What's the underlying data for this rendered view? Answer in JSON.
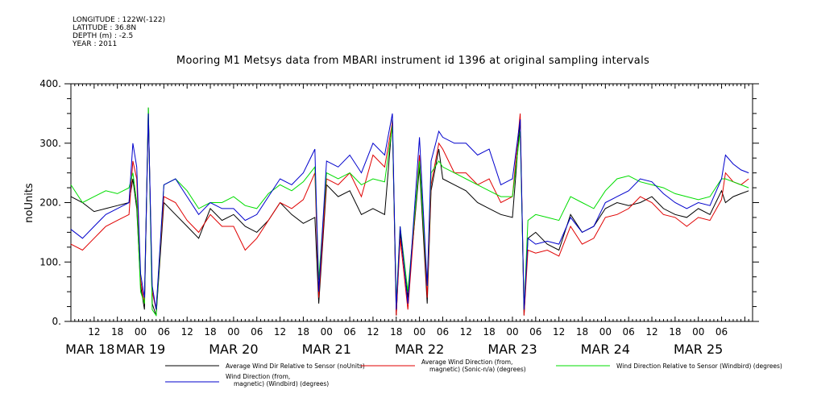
{
  "meta": {
    "longitude": "LONGITUDE : 122W(-122)",
    "latitude": "LATITUDE : 36.8N",
    "depth": "DEPTH (m) : -2.5",
    "year": "YEAR : 2011"
  },
  "chart_data": {
    "type": "line",
    "title": "Mooring M1 Metsys data from MBARI instrument id 1396 at original sampling intervals",
    "ylabel": "noUnits",
    "xlabel": "",
    "ylim": [
      0,
      400
    ],
    "yticks": [
      0,
      100,
      200,
      300,
      400
    ],
    "xlim_hours": [
      6,
      182
    ],
    "hour_ticks": [
      "12",
      "18",
      "00",
      "06",
      "12",
      "18",
      "00",
      "06",
      "12",
      "18",
      "00",
      "06",
      "12",
      "18",
      "00",
      "06",
      "12",
      "18",
      "00",
      "06",
      "12",
      "18",
      "00",
      "06",
      "12",
      "18",
      "00",
      "06"
    ],
    "day_labels": [
      "MAR 18",
      "MAR 19",
      "MAR 20",
      "MAR 21",
      "MAR 22",
      "MAR 23",
      "MAR 24",
      "MAR 25"
    ],
    "grid": false,
    "legend_position": "bottom",
    "x_unit": "hours since MAR 18 00:00",
    "series": [
      {
        "name": "Average Wind Dir Relative to Sensor (noUnits)",
        "color": "#000000",
        "x": [
          6,
          9,
          12,
          15,
          18,
          21,
          22,
          23,
          24,
          25,
          26,
          27,
          28,
          30,
          33,
          36,
          39,
          42,
          45,
          48,
          51,
          54,
          57,
          60,
          63,
          66,
          69,
          70,
          72,
          75,
          78,
          81,
          84,
          87,
          89,
          90,
          91,
          93,
          96,
          98,
          99,
          101,
          102,
          105,
          108,
          111,
          114,
          117,
          120,
          122,
          123,
          124,
          126,
          129,
          132,
          135,
          138,
          141,
          144,
          147,
          150,
          153,
          156,
          159,
          162,
          165,
          168,
          171,
          174,
          175,
          177,
          179,
          181
        ],
        "y": [
          210,
          200,
          185,
          190,
          195,
          200,
          240,
          190,
          60,
          20,
          360,
          30,
          10,
          200,
          180,
          160,
          140,
          190,
          170,
          180,
          160,
          150,
          170,
          200,
          180,
          165,
          175,
          30,
          230,
          210,
          220,
          180,
          190,
          180,
          340,
          10,
          150,
          40,
          260,
          30,
          220,
          290,
          240,
          230,
          220,
          200,
          190,
          180,
          175,
          340,
          10,
          140,
          150,
          130,
          120,
          180,
          150,
          160,
          190,
          200,
          195,
          200,
          210,
          190,
          180,
          175,
          190,
          180,
          220,
          200,
          210,
          215,
          220
        ]
      },
      {
        "name": "Average Wind Direction (from, magnetic) (Sonic-n/a) (degrees)",
        "color": "#e00000",
        "x": [
          6,
          9,
          12,
          15,
          18,
          21,
          22,
          23,
          24,
          25,
          26,
          27,
          28,
          30,
          33,
          36,
          39,
          42,
          45,
          48,
          51,
          54,
          57,
          60,
          63,
          66,
          69,
          70,
          72,
          75,
          78,
          81,
          84,
          87,
          89,
          90,
          91,
          93,
          96,
          98,
          99,
          101,
          102,
          105,
          108,
          111,
          114,
          117,
          120,
          122,
          123,
          124,
          126,
          129,
          132,
          135,
          138,
          141,
          144,
          147,
          150,
          153,
          156,
          159,
          162,
          165,
          168,
          171,
          174,
          175,
          177,
          179,
          181
        ],
        "y": [
          130,
          120,
          140,
          160,
          170,
          180,
          270,
          240,
          70,
          30,
          350,
          50,
          20,
          210,
          200,
          170,
          150,
          180,
          160,
          160,
          120,
          140,
          170,
          200,
          190,
          205,
          250,
          40,
          240,
          230,
          250,
          210,
          280,
          260,
          335,
          10,
          140,
          20,
          280,
          40,
          230,
          300,
          290,
          250,
          250,
          230,
          240,
          200,
          210,
          350,
          10,
          120,
          115,
          120,
          110,
          160,
          130,
          140,
          175,
          180,
          190,
          210,
          200,
          180,
          175,
          160,
          175,
          170,
          205,
          250,
          235,
          230,
          240
        ]
      },
      {
        "name": "Wind Direction Relative to Sensor (Windbird) (degrees)",
        "color": "#00dd00",
        "x": [
          6,
          9,
          12,
          15,
          18,
          21,
          22,
          23,
          24,
          25,
          26,
          27,
          28,
          30,
          33,
          36,
          39,
          42,
          45,
          48,
          51,
          54,
          57,
          60,
          63,
          66,
          69,
          70,
          72,
          75,
          78,
          81,
          84,
          87,
          89,
          90,
          91,
          93,
          96,
          98,
          99,
          101,
          102,
          105,
          108,
          111,
          114,
          117,
          120,
          122,
          123,
          124,
          126,
          129,
          132,
          135,
          138,
          141,
          144,
          147,
          150,
          153,
          156,
          159,
          162,
          165,
          168,
          171,
          174,
          175,
          177,
          179,
          181
        ],
        "y": [
          230,
          200,
          210,
          220,
          215,
          225,
          250,
          200,
          50,
          30,
          360,
          20,
          10,
          230,
          240,
          220,
          190,
          200,
          200,
          210,
          195,
          190,
          215,
          230,
          220,
          235,
          260,
          70,
          250,
          240,
          250,
          230,
          240,
          235,
          330,
          30,
          160,
          50,
          270,
          60,
          250,
          270,
          260,
          250,
          240,
          230,
          220,
          210,
          210,
          320,
          20,
          170,
          180,
          175,
          170,
          210,
          200,
          190,
          220,
          240,
          245,
          235,
          230,
          225,
          215,
          210,
          205,
          210,
          240,
          240,
          235,
          230,
          225
        ]
      },
      {
        "name": "Wind Direction (from, magnetic) (Windbird) (degrees)",
        "color": "#0000cc",
        "x": [
          6,
          9,
          12,
          15,
          18,
          21,
          22,
          23,
          24,
          25,
          26,
          27,
          28,
          30,
          33,
          36,
          39,
          42,
          45,
          48,
          51,
          54,
          57,
          60,
          63,
          66,
          69,
          70,
          72,
          75,
          78,
          81,
          84,
          87,
          89,
          90,
          91,
          93,
          96,
          98,
          99,
          101,
          102,
          105,
          108,
          111,
          114,
          117,
          120,
          122,
          123,
          124,
          126,
          129,
          132,
          135,
          138,
          141,
          144,
          147,
          150,
          153,
          156,
          159,
          162,
          165,
          168,
          171,
          174,
          175,
          177,
          179,
          181
        ],
        "y": [
          155,
          140,
          160,
          180,
          190,
          200,
          300,
          260,
          80,
          40,
          350,
          60,
          20,
          230,
          240,
          210,
          180,
          200,
          190,
          190,
          170,
          180,
          210,
          240,
          230,
          250,
          290,
          50,
          270,
          260,
          280,
          250,
          300,
          280,
          350,
          20,
          160,
          30,
          310,
          60,
          270,
          320,
          310,
          300,
          300,
          280,
          290,
          230,
          240,
          340,
          20,
          140,
          130,
          135,
          130,
          175,
          150,
          160,
          200,
          210,
          220,
          240,
          235,
          215,
          200,
          190,
          200,
          195,
          240,
          280,
          265,
          255,
          250
        ]
      }
    ]
  }
}
